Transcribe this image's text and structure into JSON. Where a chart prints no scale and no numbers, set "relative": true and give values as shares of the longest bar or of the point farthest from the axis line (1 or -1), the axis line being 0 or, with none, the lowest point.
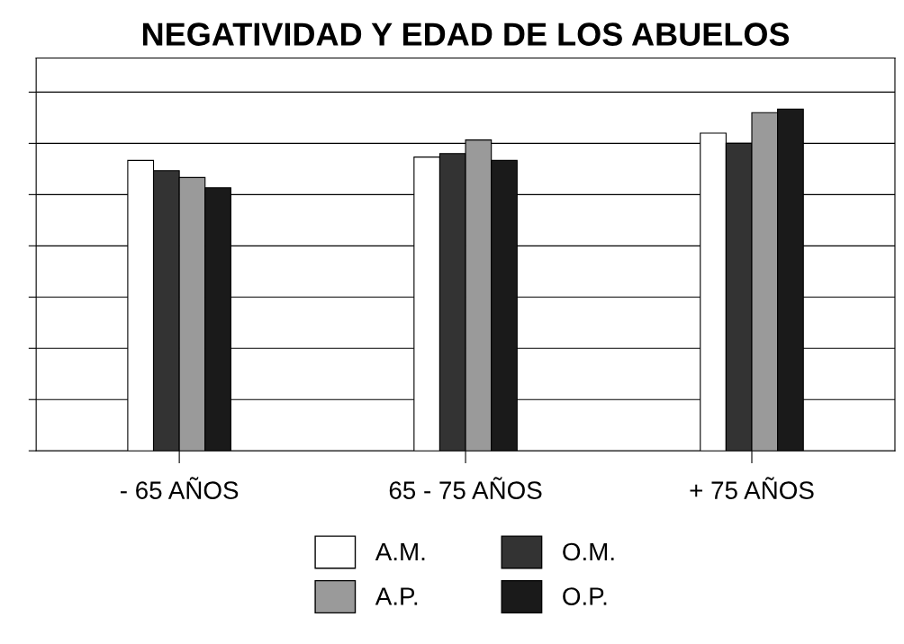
{
  "chart_data": {
    "type": "bar",
    "title": "NEGATIVIDAD Y EDAD DE LOS ABUELOS",
    "categories": [
      "- 65 AÑOS",
      "65 - 75 AÑOS",
      "+ 75 AÑOS"
    ],
    "relative": true,
    "grid": "y",
    "legend": "bottom",
    "series": [
      {
        "name": "A.M.",
        "color": "#ffffff",
        "values": [
          0.85,
          0.86,
          0.93
        ]
      },
      {
        "name": "O.M.",
        "color": "#333333",
        "values": [
          0.82,
          0.87,
          0.9
        ]
      },
      {
        "name": "A.P.",
        "color": "#9a9a9a",
        "values": [
          0.8,
          0.91,
          0.99
        ]
      },
      {
        "name": "O.P.",
        "color": "#1a1a1a",
        "values": [
          0.77,
          0.85,
          1
        ]
      }
    ]
  }
}
